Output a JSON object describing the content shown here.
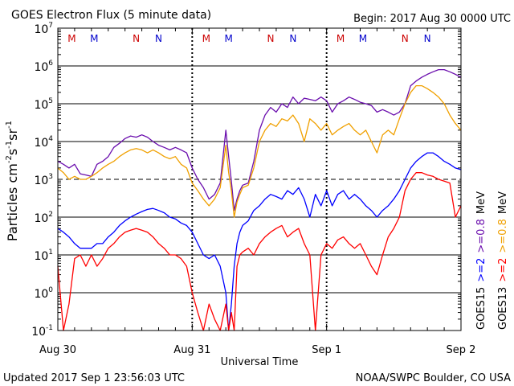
{
  "chart_data": {
    "type": "line",
    "title": "GOES Electron Flux (5 minute data)",
    "begin_label": "Begin: 2017 Aug 30 0000 UTC",
    "xlabel": "Universal Time",
    "ylabel_main": "Particles cm",
    "ylabel_sup1": "-2",
    "ylabel_mid1": "s",
    "ylabel_sup2": "-1",
    "ylabel_mid2": "sr",
    "ylabel_sup3": "-1",
    "y_scale": "log",
    "ylim": [
      0.1,
      10000000
    ],
    "y_ticks": [
      {
        "base": "10",
        "exp": "7"
      },
      {
        "base": "10",
        "exp": "6"
      },
      {
        "base": "10",
        "exp": "5"
      },
      {
        "base": "10",
        "exp": "4"
      },
      {
        "base": "10",
        "exp": "3"
      },
      {
        "base": "10",
        "exp": "2"
      },
      {
        "base": "10",
        "exp": "1"
      },
      {
        "base": "10",
        "exp": "0"
      },
      {
        "base": "10",
        "exp": "-1"
      }
    ],
    "x_range_hours": [
      0,
      72
    ],
    "x_ticks": [
      "Aug 30",
      "Aug 31",
      "Sep 1",
      "Sep 2"
    ],
    "day_markers": [
      {
        "label": "M",
        "color": "#cc0000",
        "hour": 2.5
      },
      {
        "label": "M",
        "color": "#0000cc",
        "hour": 6.5
      },
      {
        "label": "N",
        "color": "#cc0000",
        "hour": 14.0
      },
      {
        "label": "N",
        "color": "#0000cc",
        "hour": 18.0
      },
      {
        "label": "M",
        "color": "#cc0000",
        "hour": 26.5
      },
      {
        "label": "M",
        "color": "#0000cc",
        "hour": 30.5
      },
      {
        "label": "N",
        "color": "#cc0000",
        "hour": 38.0
      },
      {
        "label": "N",
        "color": "#0000cc",
        "hour": 42.0
      },
      {
        "label": "M",
        "color": "#cc0000",
        "hour": 50.5
      },
      {
        "label": "M",
        "color": "#0000cc",
        "hour": 54.5
      },
      {
        "label": "N",
        "color": "#cc0000",
        "hour": 62.0
      },
      {
        "label": "N",
        "color": "#0000cc",
        "hour": 66.0
      }
    ],
    "legend": [
      {
        "satellite": "GOES15",
        "labels": [
          {
            "text": ">=2",
            "color": "#0000ff"
          },
          {
            "text": ">=0.8",
            "color": "#6a0dad"
          }
        ],
        "unit": "MeV"
      },
      {
        "satellite": "GOES13",
        "labels": [
          {
            "text": ">=2",
            "color": "#ff0000"
          },
          {
            "text": ">=0.8",
            "color": "#f0a000"
          }
        ],
        "unit": "MeV"
      }
    ],
    "series": [
      {
        "color": "#6a0dad",
        "x": [
          0,
          1,
          2,
          3,
          4,
          5,
          6,
          7,
          8,
          9,
          10,
          11,
          12,
          13,
          14,
          15,
          16,
          17,
          18,
          19,
          20,
          21,
          22,
          23,
          24,
          25,
          26,
          27,
          28,
          29,
          30,
          30.5,
          31,
          31.5,
          32,
          32.5,
          33,
          34,
          35,
          36,
          37,
          38,
          39,
          40,
          41,
          42,
          43,
          44,
          45,
          46,
          47,
          48,
          49,
          50,
          51,
          52,
          53,
          54,
          55,
          56,
          57,
          58,
          59,
          60,
          61,
          62,
          63,
          64,
          65,
          66,
          67,
          68,
          69,
          70,
          71,
          72
        ],
        "y": [
          3000,
          2500,
          2000,
          2500,
          1400,
          1300,
          1200,
          2500,
          3000,
          4000,
          7000,
          9000,
          12000,
          14000,
          13000,
          15000,
          13000,
          10000,
          8000,
          7000,
          6000,
          7000,
          6000,
          5000,
          2000,
          1000,
          600,
          300,
          400,
          800,
          20000,
          4000,
          900,
          150,
          300,
          500,
          700,
          800,
          3000,
          20000,
          50000,
          80000,
          60000,
          100000,
          80000,
          150000,
          100000,
          140000,
          130000,
          120000,
          150000,
          120000,
          60000,
          100000,
          120000,
          150000,
          130000,
          110000,
          100000,
          90000,
          60000,
          70000,
          60000,
          50000,
          60000,
          100000,
          300000,
          400000,
          500000,
          600000,
          700000,
          800000,
          800000,
          700000,
          600000,
          500000
        ]
      },
      {
        "color": "#f0a000",
        "x": [
          0,
          1,
          2,
          3,
          4,
          5,
          6,
          7,
          8,
          9,
          10,
          11,
          12,
          13,
          14,
          15,
          16,
          17,
          18,
          19,
          20,
          21,
          22,
          23,
          24,
          25,
          26,
          27,
          28,
          29,
          30,
          30.5,
          31,
          31.5,
          32,
          32.5,
          33,
          34,
          35,
          36,
          37,
          38,
          39,
          40,
          41,
          42,
          43,
          44,
          45,
          46,
          47,
          48,
          49,
          50,
          51,
          52,
          53,
          54,
          55,
          56,
          57,
          58,
          59,
          60,
          61,
          62,
          63,
          64,
          65,
          66,
          67,
          68,
          69,
          70,
          71,
          72
        ],
        "y": [
          2000,
          1500,
          1000,
          1200,
          1000,
          1000,
          1200,
          1500,
          2000,
          2500,
          3000,
          4000,
          5000,
          6000,
          6500,
          6000,
          5000,
          6000,
          5000,
          4000,
          3500,
          4000,
          2500,
          2000,
          800,
          500,
          300,
          200,
          300,
          600,
          8000,
          1500,
          500,
          100,
          250,
          400,
          600,
          700,
          2000,
          10000,
          20000,
          30000,
          25000,
          40000,
          35000,
          50000,
          30000,
          10000,
          40000,
          30000,
          20000,
          30000,
          15000,
          20000,
          25000,
          30000,
          20000,
          15000,
          20000,
          10000,
          5000,
          15000,
          20000,
          15000,
          40000,
          100000,
          200000,
          300000,
          300000,
          250000,
          200000,
          150000,
          100000,
          50000,
          30000,
          20000
        ]
      },
      {
        "color": "#0000ff",
        "x": [
          0,
          1,
          2,
          3,
          4,
          5,
          6,
          7,
          8,
          9,
          10,
          11,
          12,
          13,
          14,
          15,
          16,
          17,
          18,
          19,
          20,
          21,
          22,
          23,
          24,
          25,
          26,
          27,
          28,
          29,
          30,
          30.5,
          31,
          31.5,
          32,
          32.5,
          33,
          34,
          35,
          36,
          37,
          38,
          39,
          40,
          41,
          42,
          43,
          44,
          45,
          46,
          47,
          48,
          49,
          50,
          51,
          52,
          53,
          54,
          55,
          56,
          57,
          58,
          59,
          60,
          61,
          62,
          63,
          64,
          65,
          66,
          67,
          68,
          69,
          70,
          71,
          72
        ],
        "y": [
          50,
          40,
          30,
          20,
          15,
          15,
          15,
          20,
          20,
          30,
          40,
          60,
          80,
          100,
          120,
          140,
          160,
          170,
          150,
          130,
          100,
          90,
          70,
          60,
          40,
          20,
          10,
          8,
          10,
          5,
          1,
          0.1,
          0.5,
          5,
          20,
          40,
          60,
          80,
          150,
          200,
          300,
          400,
          350,
          300,
          500,
          400,
          600,
          300,
          100,
          400,
          200,
          500,
          200,
          400,
          500,
          300,
          400,
          300,
          200,
          150,
          100,
          150,
          200,
          300,
          500,
          1000,
          2000,
          3000,
          4000,
          5000,
          5000,
          4000,
          3000,
          2500,
          2000,
          1800
        ]
      },
      {
        "color": "#ff0000",
        "x": [
          0,
          1,
          2,
          3,
          4,
          5,
          6,
          7,
          8,
          9,
          10,
          11,
          12,
          13,
          14,
          15,
          16,
          17,
          18,
          19,
          20,
          21,
          22,
          23,
          24,
          25,
          26,
          27,
          28,
          29,
          30,
          30.5,
          31,
          31.5,
          32,
          32.5,
          33,
          34,
          35,
          36,
          37,
          38,
          39,
          40,
          41,
          42,
          43,
          44,
          45,
          46,
          47,
          48,
          49,
          50,
          51,
          52,
          53,
          54,
          55,
          56,
          57,
          58,
          59,
          60,
          61,
          62,
          63,
          64,
          65,
          66,
          67,
          68,
          69,
          70,
          71,
          72
        ],
        "y": [
          5,
          0.1,
          0.5,
          8,
          10,
          5,
          10,
          5,
          8,
          15,
          20,
          30,
          40,
          45,
          50,
          45,
          40,
          30,
          20,
          15,
          10,
          10,
          8,
          5,
          1,
          0.3,
          0.1,
          0.5,
          0.2,
          0.1,
          0.5,
          0.1,
          0.3,
          0.1,
          5,
          10,
          12,
          15,
          10,
          20,
          30,
          40,
          50,
          60,
          30,
          40,
          50,
          20,
          10,
          0.1,
          10,
          20,
          15,
          25,
          30,
          20,
          15,
          20,
          10,
          5,
          3,
          10,
          30,
          50,
          100,
          500,
          1000,
          1500,
          1500,
          1300,
          1200,
          1000,
          900,
          800,
          100,
          200
        ]
      }
    ]
  },
  "footer": {
    "updated": "Updated 2017 Sep  1 23:56:03 UTC",
    "credit": "NOAA/SWPC Boulder, CO USA"
  }
}
